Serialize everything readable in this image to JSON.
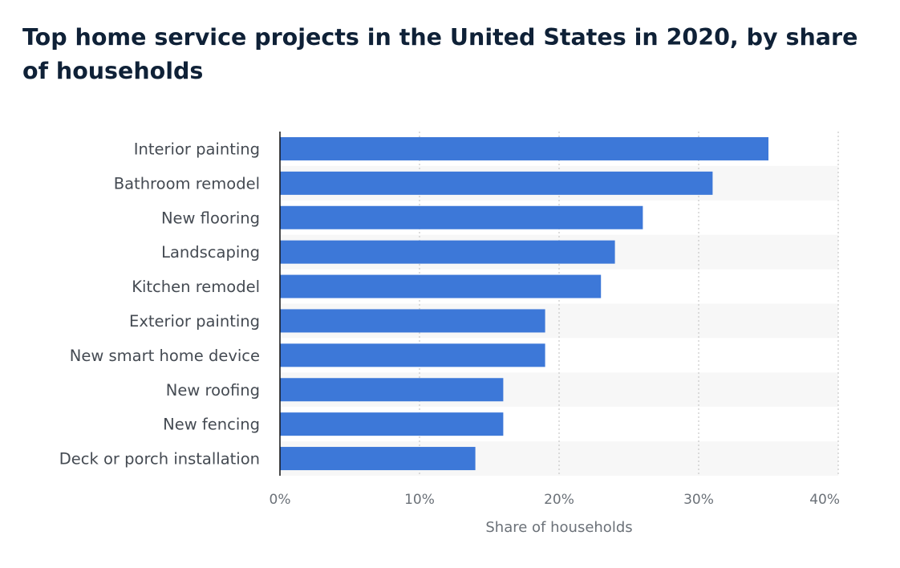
{
  "chart_data": {
    "type": "bar",
    "orientation": "horizontal",
    "title": "Top home service projects in the United States in 2020, by share of households",
    "categories": [
      "Interior painting",
      "Bathroom remodel",
      "New flooring",
      "Landscaping",
      "Kitchen remodel",
      "Exterior painting",
      "New smart home device",
      "New roofing",
      "New fencing",
      "Deck or porch installation"
    ],
    "values": [
      35,
      31,
      26,
      24,
      23,
      19,
      19,
      16,
      16,
      14
    ],
    "unit": "%",
    "xlabel": "Share of households",
    "xlim": [
      0,
      40
    ],
    "xticks": [
      0,
      10,
      20,
      30,
      40
    ],
    "xtick_labels": [
      "0%",
      "10%",
      "20%",
      "30%",
      "40%"
    ],
    "grid": true,
    "bar_color": "#3d78d8",
    "legend": "none"
  }
}
